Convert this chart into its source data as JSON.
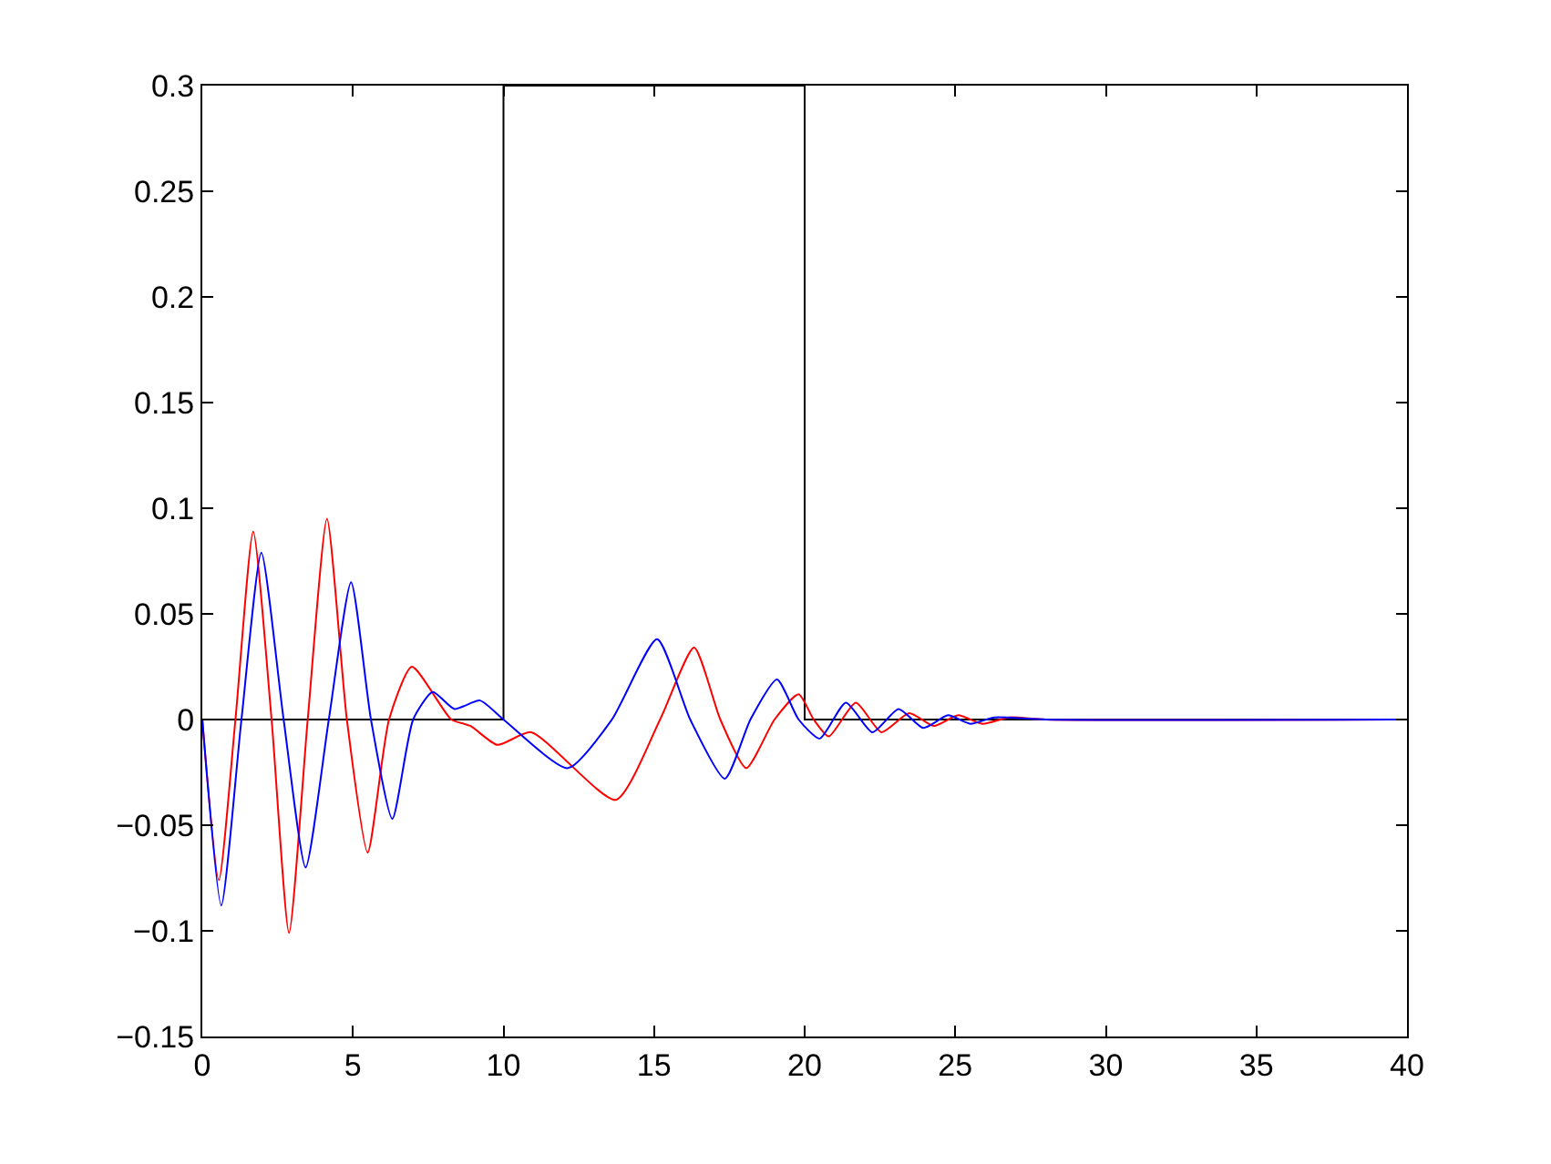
{
  "chart_data": {
    "type": "line",
    "legend": false,
    "line_style": "solid",
    "marker": "none",
    "xlim": [
      0,
      40
    ],
    "xticks": [
      0,
      5,
      10,
      15,
      20,
      25,
      30,
      35,
      40
    ],
    "ylim": [
      -0.15,
      0.3
    ],
    "yticks": [
      -0.15,
      -0.1,
      -0.05,
      0,
      0.05,
      0.1,
      0.15,
      0.2,
      0.25,
      0.3
    ],
    "series": [
      {
        "color": "#000000",
        "x": [
          0,
          10,
          10,
          20,
          20,
          40
        ],
        "values": [
          0,
          0,
          0.3,
          0.3,
          0,
          0
        ]
      },
      {
        "color": "#ff0000",
        "x": [
          0,
          0.55,
          1.1,
          1.69,
          2.3,
          2.88,
          3.5,
          4.14,
          4.8,
          5.49,
          6.2,
          6.96,
          8.27,
          8.9,
          9.8,
          10.92,
          13.73,
          15.2,
          16.33,
          17.2,
          18.06,
          19.0,
          19.8,
          20.3,
          20.8,
          21.7,
          22.55,
          23.47,
          24.29,
          25.1,
          25.9,
          26.8,
          28,
          40
        ],
        "values": [
          0,
          -0.076,
          0,
          0.089,
          0,
          -0.101,
          0,
          0.095,
          0,
          -0.063,
          0,
          0.025,
          0,
          -0.003,
          -0.012,
          -0.006,
          -0.038,
          0,
          0.034,
          0,
          -0.023,
          0,
          0.012,
          0,
          -0.008,
          0.008,
          -0.006,
          0.003,
          -0.003,
          0.002,
          -0.002,
          0.001,
          0,
          0
        ]
      },
      {
        "color": "#0000ff",
        "x": [
          0,
          0.63,
          1.3,
          1.96,
          2.7,
          3.43,
          4.2,
          4.94,
          5.6,
          6.31,
          7.0,
          7.65,
          8.37,
          9.22,
          10,
          12.14,
          13.6,
          15.1,
          16.2,
          17.35,
          18.2,
          19.08,
          19.8,
          20.5,
          21.37,
          22.25,
          23.12,
          23.94,
          24.76,
          25.5,
          26.3,
          28,
          40
        ],
        "values": [
          0,
          -0.088,
          0,
          0.079,
          0,
          -0.07,
          0,
          0.065,
          0,
          -0.047,
          0,
          0.013,
          0.005,
          0.009,
          0,
          -0.023,
          0,
          0.038,
          0,
          -0.028,
          0,
          0.019,
          0,
          -0.009,
          0.008,
          -0.006,
          0.005,
          -0.004,
          0.002,
          -0.002,
          0.001,
          0,
          0
        ]
      }
    ]
  }
}
